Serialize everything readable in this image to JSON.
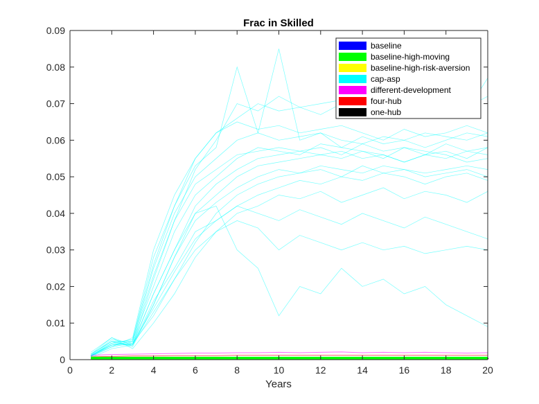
{
  "chart_data": {
    "type": "line",
    "title": "Frac in Skilled",
    "xlabel": "Years",
    "ylabel": "",
    "xlim": [
      0,
      20
    ],
    "ylim": [
      0,
      0.09
    ],
    "xticks": [
      0,
      2,
      4,
      6,
      8,
      10,
      12,
      14,
      16,
      18,
      20
    ],
    "yticks": [
      0,
      0.01,
      0.02,
      0.03,
      0.04,
      0.05,
      0.06,
      0.07,
      0.08,
      0.09
    ],
    "ytick_labels": [
      "0",
      "0.01",
      "0.02",
      "0.03",
      "0.04",
      "0.05",
      "0.06",
      "0.07",
      "0.08",
      "0.09"
    ],
    "grid": false,
    "legend_position": "top-right",
    "x": [
      1,
      2,
      3,
      4,
      5,
      6,
      7,
      8,
      9,
      10,
      11,
      12,
      13,
      14,
      15,
      16,
      17,
      18,
      19,
      20
    ],
    "series": [
      {
        "name": "baseline",
        "color": "#0000ff",
        "values": [
          0.0003,
          0.0003,
          0.0003,
          0.0003,
          0.0003,
          0.0003,
          0.0003,
          0.0003,
          0.0003,
          0.0003,
          0.0003,
          0.0003,
          0.0003,
          0.0003,
          0.0003,
          0.0003,
          0.0003,
          0.0003,
          0.0003,
          0.0003
        ]
      },
      {
        "name": "baseline-high-moving",
        "color": "#00ff00",
        "values": [
          0.0004,
          0.0004,
          0.0004,
          0.0004,
          0.0004,
          0.0004,
          0.0004,
          0.0004,
          0.0004,
          0.0004,
          0.0004,
          0.0004,
          0.0004,
          0.0004,
          0.0004,
          0.0004,
          0.0004,
          0.0004,
          0.0004,
          0.0004
        ]
      },
      {
        "name": "baseline-high-risk-aversion",
        "color": "#ffff00",
        "values": [
          0.0005,
          0.0005,
          0.0005,
          0.0005,
          0.0005,
          0.0005,
          0.0005,
          0.0005,
          0.0005,
          0.0005,
          0.0005,
          0.0005,
          0.0005,
          0.0005,
          0.0005,
          0.0005,
          0.0005,
          0.0005,
          0.0005,
          0.0005
        ]
      },
      {
        "name": "cap-asp",
        "color": "#00ffff",
        "runs": [
          [
            0.001,
            0.0045,
            0.004,
            0.018,
            0.03,
            0.042,
            0.048,
            0.052,
            0.055,
            0.056,
            0.057,
            0.058,
            0.056,
            0.059,
            0.057,
            0.058,
            0.056,
            0.059,
            0.057,
            0.058
          ],
          [
            0.0015,
            0.005,
            0.0035,
            0.015,
            0.028,
            0.04,
            0.045,
            0.05,
            0.053,
            0.054,
            0.055,
            0.056,
            0.057,
            0.055,
            0.056,
            0.054,
            0.056,
            0.055,
            0.057,
            0.056
          ],
          [
            0.0008,
            0.004,
            0.005,
            0.025,
            0.04,
            0.05,
            0.055,
            0.06,
            0.062,
            0.06,
            0.061,
            0.062,
            0.06,
            0.059,
            0.061,
            0.06,
            0.062,
            0.061,
            0.06,
            0.062
          ],
          [
            0.0012,
            0.0055,
            0.0045,
            0.012,
            0.022,
            0.032,
            0.04,
            0.045,
            0.048,
            0.05,
            0.051,
            0.052,
            0.05,
            0.053,
            0.051,
            0.052,
            0.05,
            0.051,
            0.052,
            0.05
          ],
          [
            0.001,
            0.0035,
            0.006,
            0.03,
            0.045,
            0.055,
            0.062,
            0.065,
            0.063,
            0.064,
            0.062,
            0.063,
            0.064,
            0.062,
            0.06,
            0.063,
            0.061,
            0.062,
            0.064,
            0.062
          ],
          [
            0.002,
            0.006,
            0.003,
            0.01,
            0.018,
            0.028,
            0.035,
            0.04,
            0.042,
            0.045,
            0.044,
            0.046,
            0.043,
            0.045,
            0.047,
            0.044,
            0.046,
            0.045,
            0.043,
            0.046
          ],
          [
            0.001,
            0.004,
            0.005,
            0.02,
            0.035,
            0.045,
            0.05,
            0.055,
            0.058,
            0.057,
            0.056,
            0.059,
            0.058,
            0.057,
            0.055,
            0.058,
            0.057,
            0.056,
            0.054,
            0.055
          ],
          [
            0.0005,
            0.003,
            0.004,
            0.022,
            0.038,
            0.052,
            0.06,
            0.07,
            0.068,
            0.072,
            0.069,
            0.07,
            0.071,
            0.068,
            0.07,
            0.069,
            0.071,
            0.07,
            0.069,
            0.072
          ],
          [
            0.0015,
            0.005,
            0.004,
            0.016,
            0.025,
            0.035,
            0.038,
            0.042,
            0.04,
            0.038,
            0.041,
            0.039,
            0.037,
            0.04,
            0.038,
            0.036,
            0.039,
            0.037,
            0.035,
            0.033
          ],
          [
            0.001,
            0.0045,
            0.0055,
            0.028,
            0.042,
            0.053,
            0.058,
            0.08,
            0.062,
            0.085,
            0.06,
            0.062,
            0.058,
            0.061,
            0.059,
            0.06,
            0.058,
            0.06,
            0.062,
            0.061
          ],
          [
            0.0012,
            0.004,
            0.0045,
            0.014,
            0.024,
            0.033,
            0.038,
            0.042,
            0.045,
            0.047,
            0.049,
            0.048,
            0.05,
            0.049,
            0.051,
            0.05,
            0.048,
            0.05,
            0.051,
            0.049
          ],
          [
            0.001,
            0.005,
            0.005,
            0.023,
            0.038,
            0.048,
            0.052,
            0.056,
            0.057,
            0.058,
            0.057,
            0.056,
            0.055,
            0.057,
            0.056,
            0.054,
            0.056,
            0.057,
            0.055,
            0.058
          ],
          [
            0.0008,
            0.0035,
            0.0045,
            0.018,
            0.03,
            0.04,
            0.042,
            0.03,
            0.025,
            0.012,
            0.02,
            0.018,
            0.025,
            0.02,
            0.022,
            0.018,
            0.02,
            0.015,
            0.012,
            0.009
          ],
          [
            0.0015,
            0.006,
            0.004,
            0.013,
            0.022,
            0.03,
            0.035,
            0.038,
            0.036,
            0.03,
            0.034,
            0.032,
            0.03,
            0.032,
            0.03,
            0.031,
            0.029,
            0.03,
            0.031,
            0.03
          ],
          [
            0.001,
            0.0045,
            0.0055,
            0.026,
            0.042,
            0.055,
            0.062,
            0.066,
            0.07,
            0.068,
            0.069,
            0.067,
            0.07,
            0.068,
            0.067,
            0.069,
            0.067,
            0.066,
            0.068,
            0.077
          ],
          [
            0.0012,
            0.004,
            0.004,
            0.015,
            0.028,
            0.038,
            0.043,
            0.047,
            0.05,
            0.052,
            0.051,
            0.053,
            0.052,
            0.051,
            0.053,
            0.052,
            0.051,
            0.052,
            0.053,
            0.052
          ]
        ]
      },
      {
        "name": "different-development",
        "color": "#ff00ff",
        "values": [
          0.0012,
          0.0014,
          0.0015,
          0.0016,
          0.0017,
          0.0018,
          0.0018,
          0.0019,
          0.0019,
          0.002,
          0.0019,
          0.002,
          0.0021,
          0.0019,
          0.002,
          0.0019,
          0.002,
          0.0019,
          0.0018,
          0.0019
        ]
      },
      {
        "name": "four-hub",
        "color": "#ff0000",
        "values": [
          0.0008,
          0.0009,
          0.001,
          0.001,
          0.0011,
          0.0011,
          0.0011,
          0.0012,
          0.0012,
          0.0012,
          0.0012,
          0.0012,
          0.0012,
          0.0012,
          0.0012,
          0.0012,
          0.0012,
          0.0012,
          0.0012,
          0.0012
        ]
      },
      {
        "name": "one-hub",
        "color": "#000000",
        "values": [
          0.0003,
          0.0003,
          0.0003,
          0.0004,
          0.0003,
          0.0004,
          0.0003,
          0.0003,
          0.0004,
          0.0003,
          0.0003,
          0.0004,
          0.0003,
          0.0003,
          0.0004,
          0.0003,
          0.0003,
          0.0004,
          0.0003,
          0.0003
        ]
      }
    ]
  }
}
